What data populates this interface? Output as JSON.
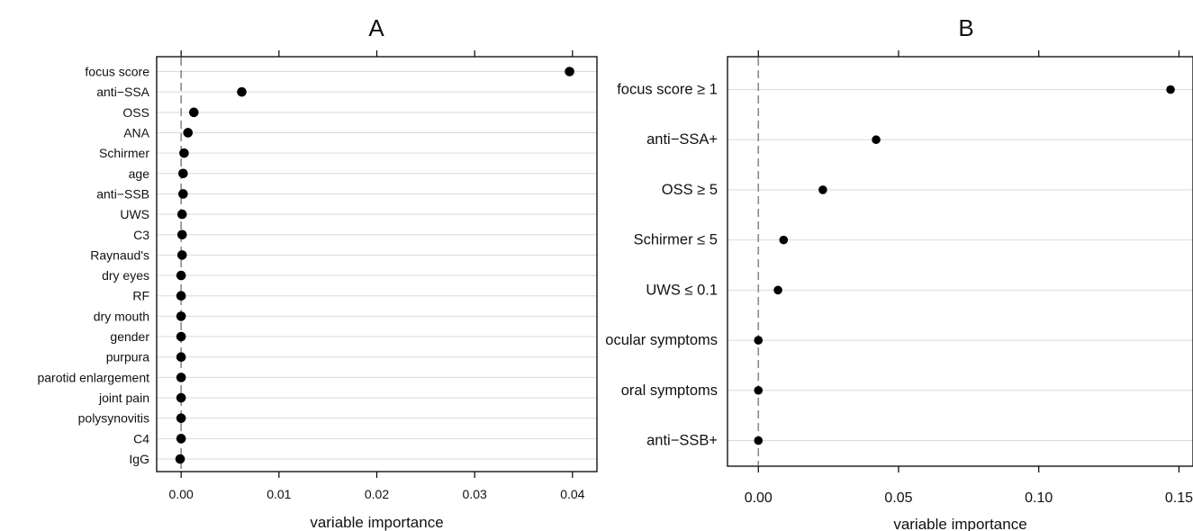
{
  "chart_data": [
    {
      "type": "scatter",
      "panel_label": "A",
      "xlabel": "variable importance",
      "categories": [
        "focus score",
        "anti−SSA",
        "OSS",
        "ANA",
        "Schirmer",
        "age",
        "anti−SSB",
        "UWS",
        "C3",
        "Raynaud's",
        "dry eyes",
        "RF",
        "dry mouth",
        "gender",
        "purpura",
        "parotid enlargement",
        "joint pain",
        "polysynovitis",
        "C4",
        "IgG"
      ],
      "values": [
        0.0397,
        0.0062,
        0.0013,
        0.0007,
        0.0003,
        0.0002,
        0.0002,
        0.0001,
        0.0001,
        0.0001,
        0.0,
        0.0,
        0.0,
        0.0,
        0.0,
        0.0,
        0.0,
        0.0,
        0.0,
        -0.0001
      ],
      "xlim": [
        -0.0025,
        0.0425
      ],
      "xticks": [
        0.0,
        0.01,
        0.02,
        0.03,
        0.04
      ],
      "xtick_labels": [
        "0.00",
        "0.01",
        "0.02",
        "0.03",
        "0.04"
      ],
      "reference_line": 0,
      "grid": true
    },
    {
      "type": "scatter",
      "panel_label": "B",
      "xlabel": "variable importance",
      "categories": [
        "focus score ≥ 1",
        "anti−SSA+",
        "OSS ≥ 5",
        "Schirmer ≤ 5",
        "UWS ≤ 0.1",
        "ocular symptoms",
        "oral symptoms",
        "anti−SSB+"
      ],
      "values": [
        0.147,
        0.042,
        0.023,
        0.009,
        0.007,
        0.0,
        0.0,
        0.0
      ],
      "xlim": [
        -0.011,
        0.155
      ],
      "xticks": [
        0.0,
        0.05,
        0.1,
        0.15
      ],
      "xtick_labels": [
        "0.00",
        "0.05",
        "0.10",
        "0.15"
      ],
      "reference_line": 0,
      "grid": true
    }
  ]
}
